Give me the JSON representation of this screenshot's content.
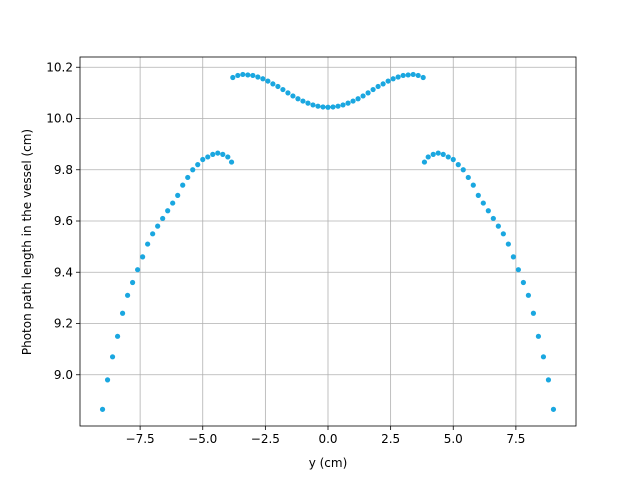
{
  "chart_data": {
    "type": "scatter",
    "xlabel": "y (cm)",
    "ylabel": "Photon path length in the vessel (cm)",
    "color": "#1aa7e0",
    "grid": true,
    "xlim": [
      -9.9,
      9.9
    ],
    "ylim": [
      8.8,
      10.24
    ],
    "xticks": [
      {
        "value": -7.5,
        "label": "−7.5"
      },
      {
        "value": -5.0,
        "label": "−5.0"
      },
      {
        "value": -2.5,
        "label": "−2.5"
      },
      {
        "value": 0,
        "label": "0.0"
      },
      {
        "value": 2.5,
        "label": "2.5"
      },
      {
        "value": 5.0,
        "label": "5.0"
      },
      {
        "value": 7.5,
        "label": "7.5"
      }
    ],
    "yticks": [
      {
        "value": 9.0,
        "label": "9.0"
      },
      9.2,
      9.4,
      9.6,
      9.8,
      {
        "value": 10.0,
        "label": "10.0"
      },
      10.2
    ],
    "x": [
      -9.0,
      -8.8,
      -8.6,
      -8.4,
      -8.2,
      -8.0,
      -7.8,
      -7.6,
      -7.4,
      -7.2,
      -7.0,
      -6.8,
      -6.6,
      -6.4,
      -6.2,
      -6.0,
      -5.8,
      -5.6,
      -5.4,
      -5.2,
      -5.0,
      -4.8,
      -4.6,
      -4.4,
      -4.2,
      -4.0,
      -3.85,
      -3.8,
      -3.6,
      -3.4,
      -3.2,
      -3.0,
      -2.8,
      -2.6,
      -2.4,
      -2.2,
      -2.0,
      -1.8,
      -1.6,
      -1.4,
      -1.2,
      -1.0,
      -0.8,
      -0.6,
      -0.4,
      -0.2,
      0,
      0.2,
      0.4,
      0.6,
      0.8,
      1.0,
      1.2,
      1.4,
      1.6,
      1.8,
      2.0,
      2.2,
      2.4,
      2.6,
      2.8,
      3.0,
      3.2,
      3.4,
      3.6,
      3.8,
      3.85,
      4.0,
      4.2,
      4.4,
      4.6,
      4.8,
      5.0,
      5.2,
      5.4,
      5.6,
      5.8,
      6.0,
      6.2,
      6.4,
      6.6,
      6.8,
      7.0,
      7.2,
      7.4,
      7.6,
      7.8,
      8.0,
      8.2,
      8.4,
      8.6,
      8.8,
      9.0
    ],
    "values": [
      8.865,
      8.98,
      9.07,
      9.15,
      9.24,
      9.31,
      9.36,
      9.41,
      9.46,
      9.51,
      9.55,
      9.58,
      9.61,
      9.64,
      9.67,
      9.7,
      9.74,
      9.77,
      9.8,
      9.82,
      9.84,
      9.85,
      9.86,
      9.865,
      9.86,
      9.85,
      9.83,
      10.16,
      10.168,
      10.172,
      10.17,
      10.168,
      10.162,
      10.155,
      10.146,
      10.135,
      10.125,
      10.113,
      10.1,
      10.088,
      10.077,
      10.068,
      10.06,
      10.053,
      10.048,
      10.045,
      10.044,
      10.045,
      10.048,
      10.053,
      10.06,
      10.068,
      10.077,
      10.088,
      10.1,
      10.113,
      10.125,
      10.135,
      10.146,
      10.155,
      10.162,
      10.168,
      10.17,
      10.172,
      10.168,
      10.16,
      9.83,
      9.85,
      9.86,
      9.865,
      9.86,
      9.85,
      9.84,
      9.82,
      9.8,
      9.77,
      9.74,
      9.7,
      9.67,
      9.64,
      9.61,
      9.58,
      9.55,
      9.51,
      9.46,
      9.41,
      9.36,
      9.31,
      9.24,
      9.15,
      9.07,
      8.98,
      8.865
    ]
  }
}
